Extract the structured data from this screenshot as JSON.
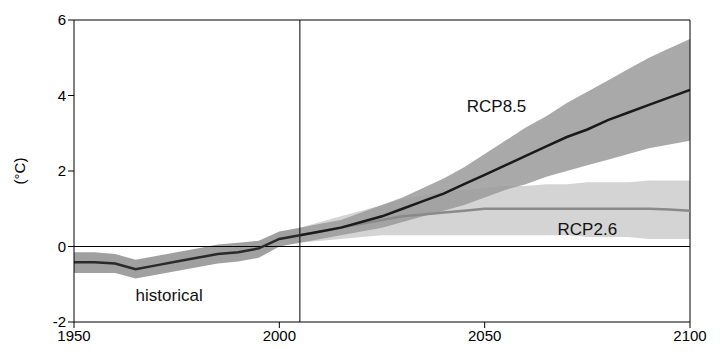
{
  "chart_data": {
    "type": "line",
    "ylabel": "(°C)",
    "xlim": [
      1950,
      2100
    ],
    "xticks": [
      1950,
      2000,
      2050,
      2100
    ],
    "ylim": [
      -2,
      6
    ],
    "yticks": [
      -2,
      0,
      2,
      4,
      6
    ],
    "grid": false,
    "x": [
      1950,
      1955,
      1960,
      1965,
      1970,
      1975,
      1980,
      1985,
      1990,
      1995,
      2000,
      2005,
      2010,
      2015,
      2020,
      2025,
      2030,
      2035,
      2040,
      2045,
      2050,
      2055,
      2060,
      2065,
      2070,
      2075,
      2080,
      2085,
      2090,
      2095,
      2100
    ],
    "series": [
      {
        "name": "historical",
        "color": "#2a2a2a",
        "values": [
          -0.42,
          -0.42,
          -0.45,
          -0.6,
          -0.5,
          -0.4,
          -0.3,
          -0.2,
          -0.15,
          -0.05,
          0.2,
          0.3,
          null,
          null,
          null,
          null,
          null,
          null,
          null,
          null,
          null,
          null,
          null,
          null,
          null,
          null,
          null,
          null,
          null,
          null,
          null
        ],
        "lower": [
          -0.7,
          -0.7,
          -0.7,
          -0.85,
          -0.75,
          -0.65,
          -0.55,
          -0.45,
          -0.4,
          -0.3,
          0.0,
          0.1,
          null,
          null,
          null,
          null,
          null,
          null,
          null,
          null,
          null,
          null,
          null,
          null,
          null,
          null,
          null,
          null,
          null,
          null,
          null
        ],
        "upper": [
          -0.15,
          -0.15,
          -0.2,
          -0.35,
          -0.25,
          -0.15,
          -0.05,
          0.05,
          0.1,
          0.15,
          0.4,
          0.5,
          null,
          null,
          null,
          null,
          null,
          null,
          null,
          null,
          null,
          null,
          null,
          null,
          null,
          null,
          null,
          null,
          null,
          null,
          null
        ]
      },
      {
        "name": "RCP8.5",
        "color": "#1a1a1a",
        "values": [
          null,
          null,
          null,
          null,
          null,
          null,
          null,
          null,
          null,
          null,
          null,
          0.3,
          0.4,
          0.5,
          0.65,
          0.8,
          1.0,
          1.2,
          1.4,
          1.65,
          1.9,
          2.15,
          2.4,
          2.65,
          2.9,
          3.1,
          3.35,
          3.55,
          3.75,
          3.95,
          4.15
        ],
        "lower": [
          null,
          null,
          null,
          null,
          null,
          null,
          null,
          null,
          null,
          null,
          null,
          0.1,
          0.2,
          0.3,
          0.4,
          0.5,
          0.65,
          0.8,
          0.95,
          1.1,
          1.3,
          1.5,
          1.65,
          1.85,
          2.0,
          2.15,
          2.3,
          2.45,
          2.6,
          2.7,
          2.8
        ],
        "upper": [
          null,
          null,
          null,
          null,
          null,
          null,
          null,
          null,
          null,
          null,
          null,
          0.5,
          0.6,
          0.7,
          0.9,
          1.1,
          1.3,
          1.55,
          1.8,
          2.1,
          2.45,
          2.8,
          3.15,
          3.45,
          3.8,
          4.1,
          4.4,
          4.7,
          5.0,
          5.25,
          5.5
        ]
      },
      {
        "name": "RCP2.6",
        "color": "#8a8a8a",
        "values": [
          null,
          null,
          null,
          null,
          null,
          null,
          null,
          null,
          null,
          null,
          null,
          0.3,
          0.4,
          0.5,
          0.6,
          0.7,
          0.8,
          0.85,
          0.9,
          0.95,
          1.0,
          1.0,
          1.0,
          1.0,
          1.0,
          1.0,
          1.0,
          1.0,
          1.0,
          0.98,
          0.95
        ],
        "lower": [
          null,
          null,
          null,
          null,
          null,
          null,
          null,
          null,
          null,
          null,
          null,
          0.1,
          0.15,
          0.2,
          0.25,
          0.3,
          0.3,
          0.3,
          0.3,
          0.3,
          0.3,
          0.3,
          0.3,
          0.3,
          0.3,
          0.25,
          0.25,
          0.25,
          0.2,
          0.2,
          0.2
        ],
        "upper": [
          null,
          null,
          null,
          null,
          null,
          null,
          null,
          null,
          null,
          null,
          null,
          0.5,
          0.65,
          0.8,
          0.95,
          1.1,
          1.25,
          1.35,
          1.45,
          1.5,
          1.55,
          1.6,
          1.6,
          1.65,
          1.65,
          1.7,
          1.7,
          1.7,
          1.75,
          1.75,
          1.75
        ]
      }
    ]
  }
}
